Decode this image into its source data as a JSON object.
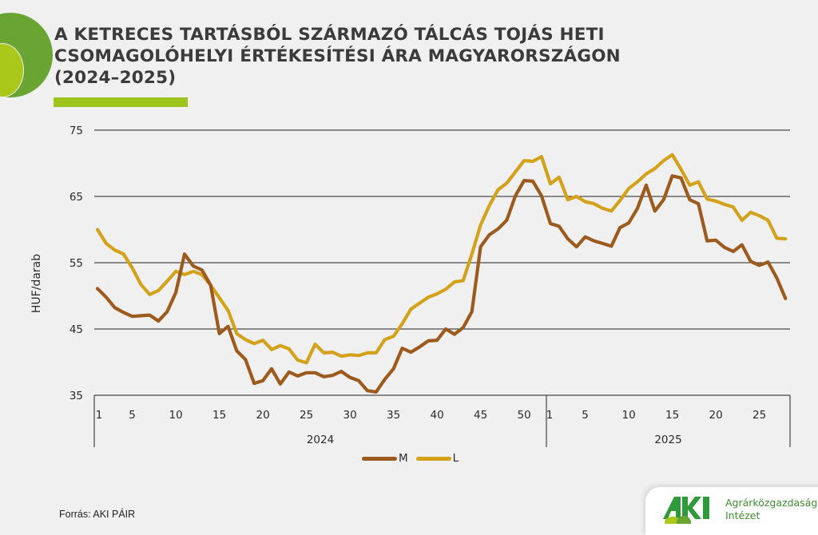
{
  "title": {
    "lines": [
      "A KETRECES TARTÁSBÓL SZÁRMAZÓ TÁLCÁS TOJÁS HETI",
      "CSOMAGOLÓHELYI ÉRTÉKESÍTÉSI ÁRA MAGYARORSZÁGON",
      "(2024–2025)"
    ]
  },
  "source": "Forrás: AKI PÁIR",
  "logo": {
    "mark": "AKI",
    "name_line1": "Agrárközgazdasági",
    "name_line2": "Intézet"
  },
  "colors": {
    "M": "#9c5a1c",
    "L": "#d3a21a",
    "accent_green": "#6aa533",
    "accent_lime": "#9dc41a",
    "title": "#3b3b3b"
  },
  "chart_data": {
    "type": "line",
    "title": "A ketreces tartásból származó tálcás tojás heti csomagolóhelyi értékesítési ára Magyarországon (2024–2025)",
    "xlabel": "",
    "ylabel": "HUF/darab",
    "ylim": [
      35,
      75
    ],
    "yticks": [
      35,
      45,
      55,
      65,
      75
    ],
    "grid": true,
    "legend_position": "bottom",
    "x_groups": [
      {
        "label": "2024",
        "weeks": 52,
        "tick_labels": [
          "1",
          "5",
          "10",
          "15",
          "20",
          "25",
          "30",
          "35",
          "40",
          "45",
          "50"
        ]
      },
      {
        "label": "2025",
        "weeks": 28,
        "tick_labels": [
          "1",
          "5",
          "10",
          "15",
          "20",
          "25"
        ]
      }
    ],
    "series": [
      {
        "name": "M",
        "color": "#9c5a1c",
        "values_2024": [
          51.1,
          49.8,
          48.2,
          47.5,
          46.9,
          47.0,
          47.1,
          46.2,
          47.6,
          50.5,
          56.3,
          54.5,
          53.9,
          51.6,
          44.3,
          45.4,
          41.7,
          40.4,
          36.8,
          37.2,
          39.0,
          36.7,
          38.5,
          37.9,
          38.4,
          38.4,
          37.8,
          38.0,
          38.6,
          37.7,
          37.2,
          35.7,
          35.5,
          37.4,
          39.0,
          42.1,
          41.5,
          42.3,
          43.2,
          43.3,
          45.0,
          44.2,
          45.2,
          47.6,
          57.4,
          59.2,
          60.1,
          61.4,
          65.1,
          67.4,
          67.3,
          65.1
        ],
        "values_2025": [
          60.9,
          60.5,
          58.6,
          57.4,
          58.9,
          58.3,
          57.9,
          57.5,
          60.3,
          61.0,
          63.2,
          66.7,
          62.8,
          64.5,
          68.1,
          67.8,
          64.5,
          63.9,
          58.3,
          58.4,
          57.3,
          56.7,
          57.7,
          55.2,
          54.6,
          55.1,
          52.7,
          49.6
        ]
      },
      {
        "name": "L",
        "color": "#d3a21a",
        "values_2024": [
          60.0,
          57.9,
          56.9,
          56.3,
          54.2,
          51.7,
          50.2,
          50.8,
          52.2,
          53.7,
          53.2,
          53.7,
          53.2,
          51.6,
          49.7,
          47.8,
          44.3,
          43.4,
          42.8,
          43.3,
          41.9,
          42.5,
          42.0,
          40.3,
          39.9,
          42.7,
          41.4,
          41.5,
          40.9,
          41.1,
          41.0,
          41.4,
          41.4,
          43.4,
          43.9,
          45.8,
          48.0,
          48.9,
          49.8,
          50.3,
          51.0,
          52.1,
          52.3,
          56.3,
          60.7,
          63.6,
          66.0,
          67.0,
          68.7,
          70.4,
          70.3,
          71.0
        ],
        "values_2025": [
          66.9,
          67.9,
          64.5,
          65.0,
          64.2,
          63.9,
          63.2,
          62.8,
          64.4,
          66.2,
          67.2,
          68.4,
          69.2,
          70.4,
          71.3,
          69.1,
          66.7,
          67.2,
          64.6,
          64.3,
          63.8,
          63.4,
          61.4,
          62.6,
          62.1,
          61.4,
          58.7,
          58.6
        ]
      }
    ]
  }
}
